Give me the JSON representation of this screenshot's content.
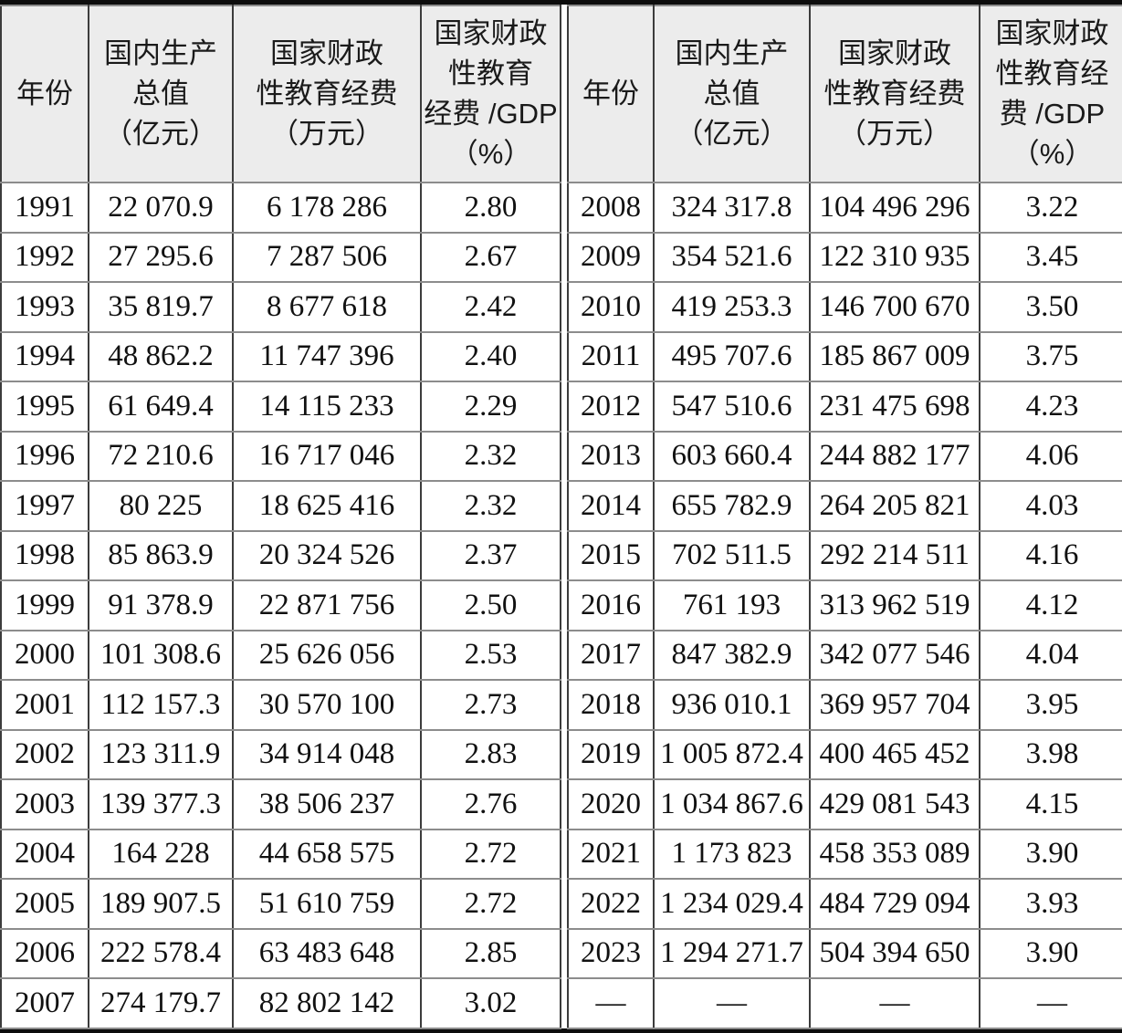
{
  "table": {
    "headers": {
      "year": "年份",
      "gdp": "国内生产\n总值\n（亿元）",
      "edu": "国家财政\n性教育经费\n（万元）",
      "ratio_left": "国家财政\n性教育\n经费 /GDP\n（%）",
      "ratio_right": "国家财政\n性教育经\n费 /GDP\n（%）"
    },
    "left_rows": [
      {
        "year": "1991",
        "gdp": "22 070.9",
        "edu": "6 178 286",
        "ratio": "2.80"
      },
      {
        "year": "1992",
        "gdp": "27 295.6",
        "edu": "7 287 506",
        "ratio": "2.67"
      },
      {
        "year": "1993",
        "gdp": "35 819.7",
        "edu": "8 677 618",
        "ratio": "2.42"
      },
      {
        "year": "1994",
        "gdp": "48 862.2",
        "edu": "11 747 396",
        "ratio": "2.40"
      },
      {
        "year": "1995",
        "gdp": "61 649.4",
        "edu": "14 115 233",
        "ratio": "2.29"
      },
      {
        "year": "1996",
        "gdp": "72 210.6",
        "edu": "16 717 046",
        "ratio": "2.32"
      },
      {
        "year": "1997",
        "gdp": "80 225",
        "edu": "18 625 416",
        "ratio": "2.32"
      },
      {
        "year": "1998",
        "gdp": "85 863.9",
        "edu": "20 324 526",
        "ratio": "2.37"
      },
      {
        "year": "1999",
        "gdp": "91 378.9",
        "edu": "22 871 756",
        "ratio": "2.50"
      },
      {
        "year": "2000",
        "gdp": "101 308.6",
        "edu": "25 626 056",
        "ratio": "2.53"
      },
      {
        "year": "2001",
        "gdp": "112 157.3",
        "edu": "30 570 100",
        "ratio": "2.73"
      },
      {
        "year": "2002",
        "gdp": "123 311.9",
        "edu": "34 914 048",
        "ratio": "2.83"
      },
      {
        "year": "2003",
        "gdp": "139 377.3",
        "edu": "38 506 237",
        "ratio": "2.76"
      },
      {
        "year": "2004",
        "gdp": "164 228",
        "edu": "44 658 575",
        "ratio": "2.72"
      },
      {
        "year": "2005",
        "gdp": "189 907.5",
        "edu": "51 610 759",
        "ratio": "2.72"
      },
      {
        "year": "2006",
        "gdp": "222 578.4",
        "edu": "63 483 648",
        "ratio": "2.85"
      },
      {
        "year": "2007",
        "gdp": "274 179.7",
        "edu": "82 802 142",
        "ratio": "3.02"
      }
    ],
    "right_rows": [
      {
        "year": "2008",
        "gdp": "324 317.8",
        "edu": "104 496 296",
        "ratio": "3.22"
      },
      {
        "year": "2009",
        "gdp": "354 521.6",
        "edu": "122 310 935",
        "ratio": "3.45"
      },
      {
        "year": "2010",
        "gdp": "419 253.3",
        "edu": "146 700 670",
        "ratio": "3.50"
      },
      {
        "year": "2011",
        "gdp": "495 707.6",
        "edu": "185 867 009",
        "ratio": "3.75"
      },
      {
        "year": "2012",
        "gdp": "547 510.6",
        "edu": "231 475 698",
        "ratio": "4.23"
      },
      {
        "year": "2013",
        "gdp": "603 660.4",
        "edu": "244 882 177",
        "ratio": "4.06"
      },
      {
        "year": "2014",
        "gdp": "655 782.9",
        "edu": "264 205 821",
        "ratio": "4.03"
      },
      {
        "year": "2015",
        "gdp": "702 511.5",
        "edu": "292 214 511",
        "ratio": "4.16"
      },
      {
        "year": "2016",
        "gdp": "761 193",
        "edu": "313 962 519",
        "ratio": "4.12"
      },
      {
        "year": "2017",
        "gdp": "847 382.9",
        "edu": "342 077 546",
        "ratio": "4.04"
      },
      {
        "year": "2018",
        "gdp": "936 010.1",
        "edu": "369 957 704",
        "ratio": "3.95"
      },
      {
        "year": "2019",
        "gdp": "1 005 872.4",
        "edu": "400 465 452",
        "ratio": "3.98"
      },
      {
        "year": "2020",
        "gdp": "1 034 867.6",
        "edu": "429 081 543",
        "ratio": "4.15"
      },
      {
        "year": "2021",
        "gdp": "1 173 823",
        "edu": "458 353 089",
        "ratio": "3.90"
      },
      {
        "year": "2022",
        "gdp": "1 234 029.4",
        "edu": "484 729 094",
        "ratio": "3.93"
      },
      {
        "year": "2023",
        "gdp": "1 294 271.7",
        "edu": "504 394 650",
        "ratio": "3.90"
      },
      {
        "year": "—",
        "gdp": "—",
        "edu": "—",
        "ratio": "—"
      }
    ]
  }
}
